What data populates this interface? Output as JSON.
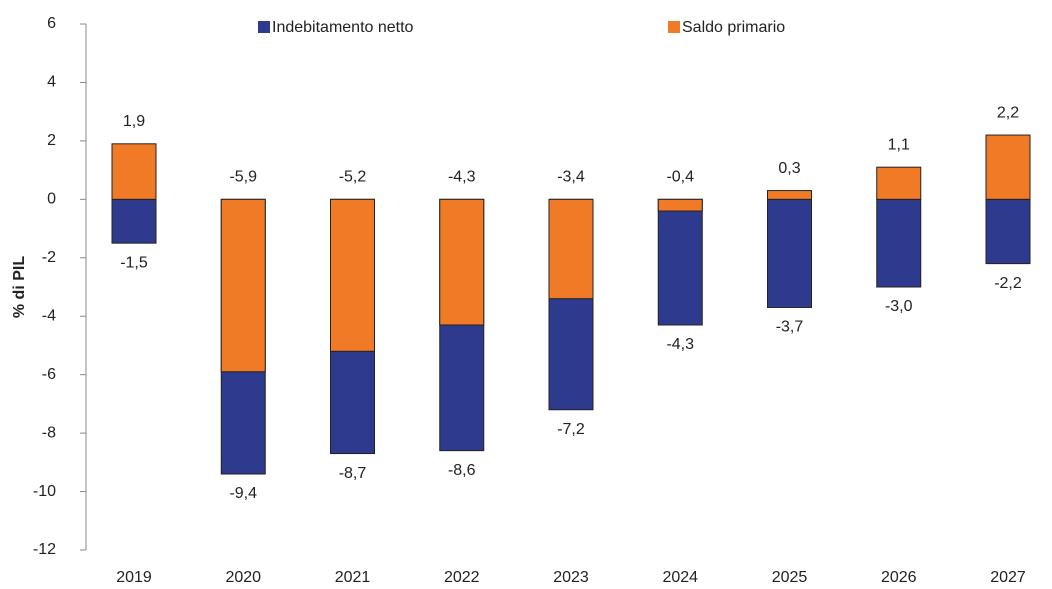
{
  "chart_data": {
    "type": "bar",
    "barmode": "overlay",
    "y_label": "% di PIL",
    "categories": [
      "2019",
      "2020",
      "2021",
      "2022",
      "2023",
      "2024",
      "2025",
      "2026",
      "2027"
    ],
    "series": [
      {
        "name": "Indebitamento netto",
        "color": "#2e3a8e",
        "values": [
          -1.5,
          -9.4,
          -8.7,
          -8.6,
          -7.2,
          -4.3,
          -3.7,
          -3.0,
          -2.2
        ],
        "value_labels": [
          "-1,5",
          "-9,4",
          "-8,7",
          "-8,6",
          "-7,2",
          "-4,3",
          "-3,7",
          "-3,0",
          "-2,2"
        ]
      },
      {
        "name": "Saldo primario",
        "color": "#f07a26",
        "values": [
          1.9,
          -5.9,
          -5.2,
          -4.3,
          -3.4,
          -0.4,
          0.3,
          1.1,
          2.2
        ],
        "value_labels": [
          "1,9",
          "-5,9",
          "-5,2",
          "-4,3",
          "-3,4",
          "-0,4",
          "0,3",
          "1,1",
          "2,2"
        ]
      }
    ],
    "ylim": [
      -12,
      6
    ],
    "yticks": [
      -12,
      -10,
      -8,
      -6,
      -4,
      -2,
      0,
      2,
      4,
      6
    ]
  }
}
